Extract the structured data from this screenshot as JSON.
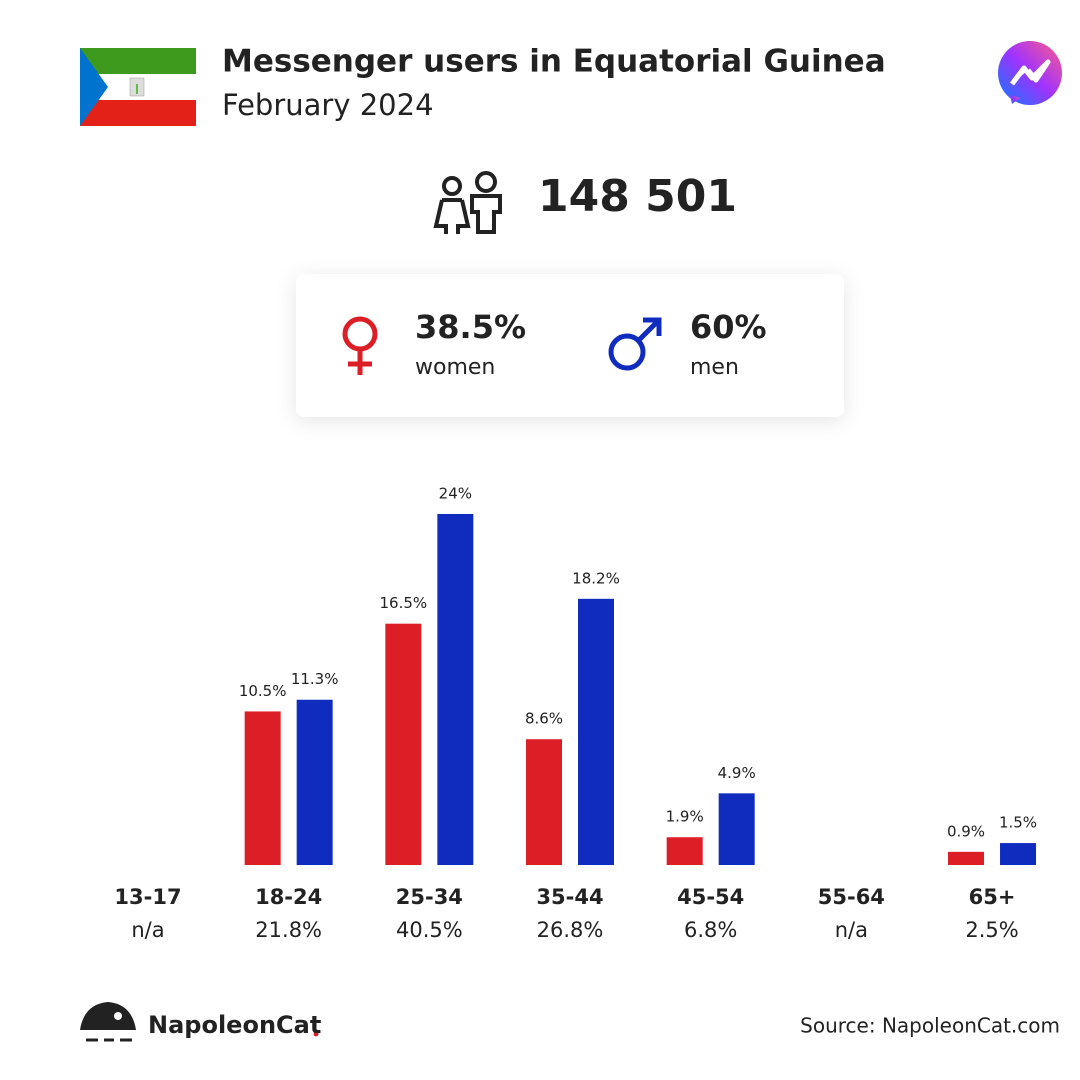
{
  "chart_data": {
    "type": "bar",
    "title": "Messenger users in Equatorial Guinea",
    "subtitle": "February 2024",
    "total_users": "148 501",
    "categories": [
      "13-17",
      "18-24",
      "25-34",
      "35-44",
      "45-54",
      "55-64",
      "65+"
    ],
    "category_totals": [
      "n/a",
      "21.8%",
      "40.5%",
      "26.8%",
      "6.8%",
      "n/a",
      "2.5%"
    ],
    "series": [
      {
        "name": "women",
        "share": "38.5%",
        "color": "#dc1f26",
        "values": [
          null,
          10.5,
          16.5,
          8.6,
          1.9,
          null,
          0.9
        ],
        "value_labels": [
          null,
          "10.5%",
          "16.5%",
          "8.6%",
          "1.9%",
          null,
          "0.9%"
        ]
      },
      {
        "name": "men",
        "share": "60%",
        "color": "#0f2cbf",
        "values": [
          null,
          11.3,
          24,
          18.2,
          4.9,
          null,
          1.5
        ],
        "value_labels": [
          null,
          "11.3%",
          "24%",
          "18.2%",
          "4.9%",
          null,
          "1.5%"
        ]
      }
    ],
    "ylim": [
      0,
      24
    ],
    "brand": "NapoleonCat",
    "source": "Source: NapoleonCat.com"
  }
}
